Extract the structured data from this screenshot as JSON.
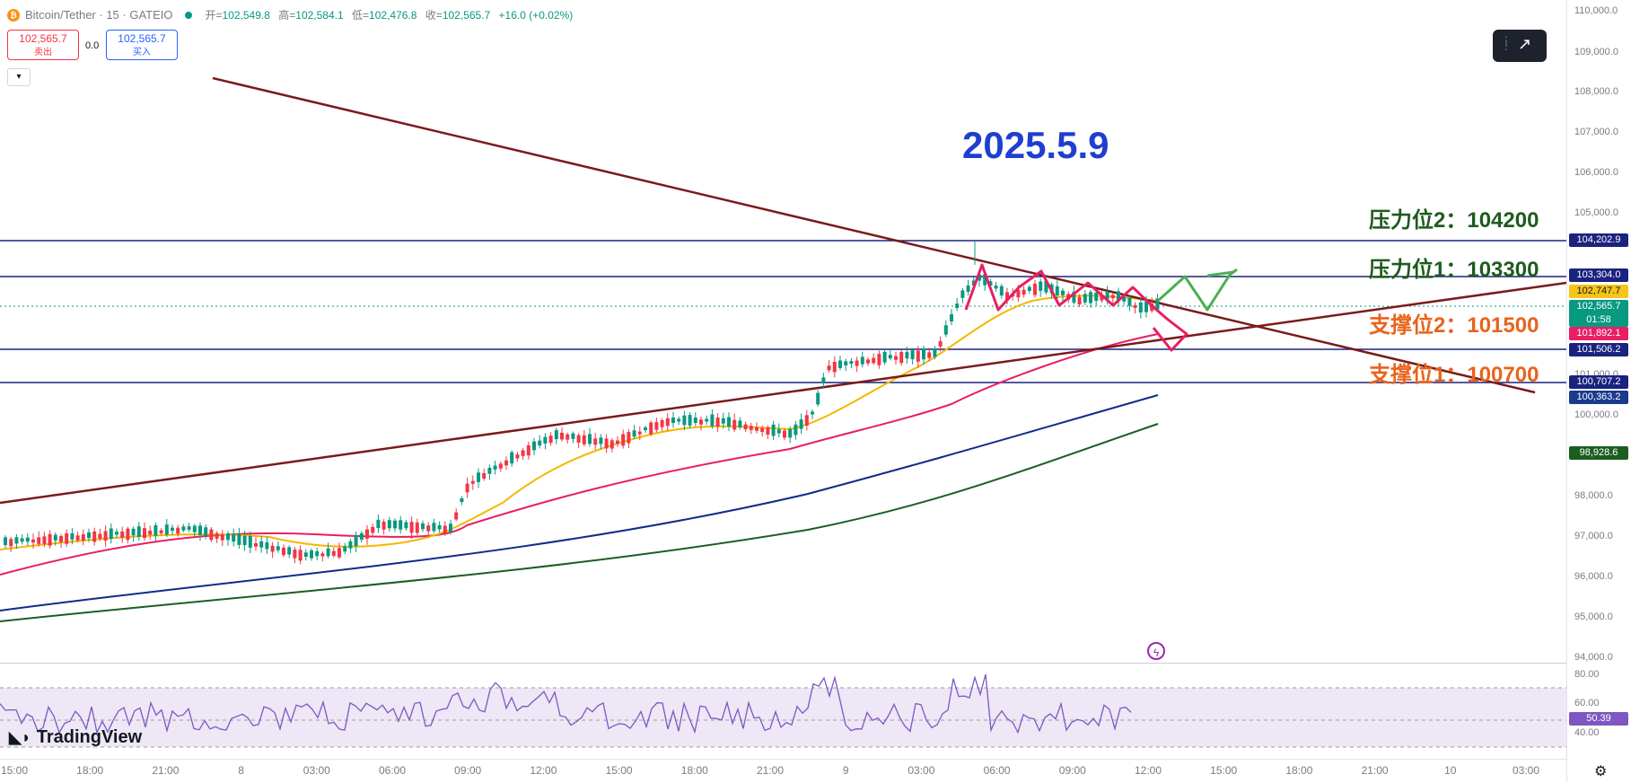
{
  "symbol": {
    "name": "Bitcoin/Tether",
    "interval": "15",
    "exchange": "GATEIO",
    "display": "Bitcoin/Tether · 15 · GATEIO",
    "icon": "bitcoin-coin-icon"
  },
  "ohlc": {
    "open_label": "开",
    "open": "102,549.8",
    "high_label": "高",
    "high": "102,584.1",
    "low_label": "低",
    "low": "102,476.8",
    "close_label": "收",
    "close": "102,565.7",
    "change": "+16.0 (+0.02%)"
  },
  "trade": {
    "sell_price": "102,565.7",
    "sell_label": "卖出",
    "spread": "0.0",
    "buy_price": "102,565.7",
    "buy_label": "买入"
  },
  "price_scale": {
    "ticks": [
      "110,000.0",
      "109,000.0",
      "108,000.0",
      "107,000.0",
      "106,000.0",
      "105,000.0",
      "101,000.0",
      "100,000.0",
      "98,000.0",
      "97,000.0",
      "96,000.0",
      "95,000.0",
      "94,000.0"
    ],
    "tags": [
      {
        "label": "104,202.9",
        "color": "#1a237e"
      },
      {
        "label": "103,304.0",
        "color": "#1a237e"
      },
      {
        "label": "102,747.7",
        "color": "#f5c518",
        "text_color": "#131722"
      },
      {
        "label": "102,565.7",
        "sub": "01:58",
        "color": "#089981"
      },
      {
        "label": "101,892.1",
        "color": "#e91e63"
      },
      {
        "label": "101,506.2",
        "color": "#1a237e"
      },
      {
        "label": "100,707.2",
        "color": "#1a237e"
      },
      {
        "label": "100,363.2",
        "color": "#1a3a8c"
      },
      {
        "label": "98,928.6",
        "color": "#1b5e20"
      }
    ],
    "rsi_ticks": [
      "80.00",
      "60.00",
      "40.00"
    ],
    "rsi_value": "50.39"
  },
  "time_axis": [
    "15:00",
    "18:00",
    "21:00",
    "8",
    "03:00",
    "06:00",
    "09:00",
    "12:00",
    "15:00",
    "18:00",
    "21:00",
    "9",
    "03:00",
    "06:00",
    "09:00",
    "12:00",
    "15:00",
    "18:00",
    "21:00",
    "10",
    "03:00"
  ],
  "annotations": {
    "date": "2025.5.9",
    "resistance2": "压力位2：104200",
    "resistance1": "压力位1：103300",
    "support2": "支撑位2：101500",
    "support1": "支撑位1：100700"
  },
  "branding": {
    "logo_text": "TradingView"
  },
  "icons": {
    "collapse": "chevron-down-icon",
    "drawing_toolbar": "trend-line-icon",
    "settings": "gear-icon",
    "alert": "lightning-icon"
  },
  "colors": {
    "up": "#089981",
    "down": "#f23645",
    "horizontal_levels": "#1a237e",
    "trendline": "#7b1a1a",
    "ma_fast": "#f5b700",
    "ma_mid": "#e91e63",
    "ma_slow": "#0d2b8c",
    "ma_long": "#1b5e20",
    "rsi": "#7e57c2"
  }
}
